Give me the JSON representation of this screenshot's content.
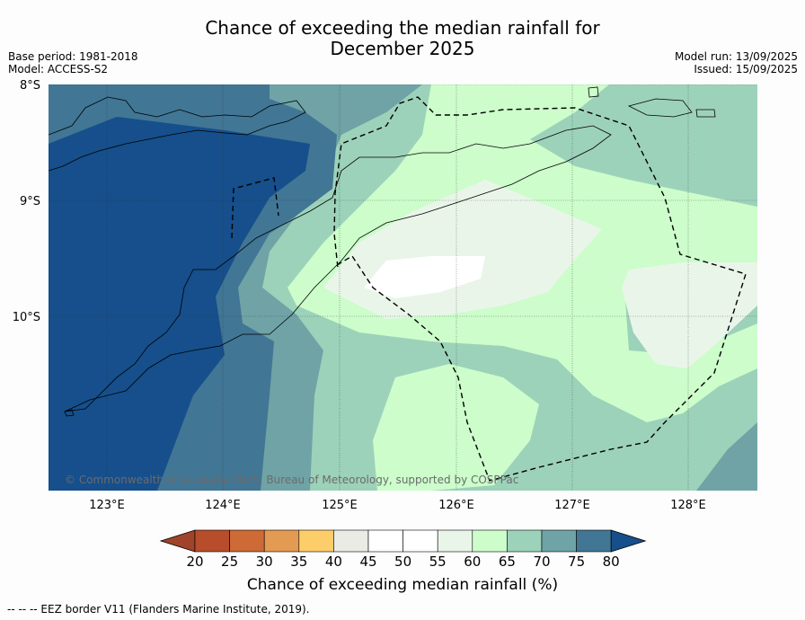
{
  "title": {
    "line1": "Chance of exceeding the median rainfall for",
    "line2": "December 2025"
  },
  "meta": {
    "base_period": "Base period: 1981-2018",
    "model": "Model: ACCESS-S2",
    "model_run": "Model run: 13/09/2025",
    "issued": "Issued: 15/09/2025"
  },
  "map": {
    "lat_labels": [
      "8°S",
      "9°S",
      "10°S"
    ],
    "lon_labels": [
      "123°E",
      "124°E",
      "125°E",
      "126°E",
      "127°E",
      "128°E"
    ],
    "copyright": "© Commonwealth of Australia 2025, Bureau of Meteorology, supported by COSPPac"
  },
  "colorbar": {
    "ticks": [
      "20",
      "25",
      "30",
      "35",
      "40",
      "45",
      "50",
      "55",
      "60",
      "65",
      "70",
      "75",
      "80"
    ],
    "colors": [
      "#a0432b",
      "#b84d2c",
      "#cd6a35",
      "#e39a52",
      "#fdcd6a",
      "#ebebe6",
      "#ffffff",
      "#ffffff",
      "#eaf5ea",
      "#ccfdcb",
      "#9dd2ba",
      "#6fa3a6",
      "#417695",
      "#164f8b"
    ],
    "label": "Chance of exceeding median rainfall (%)"
  },
  "legend_footer": "--  --  -- EEZ border V11 (Flanders Marine Institute, 2019)."
}
